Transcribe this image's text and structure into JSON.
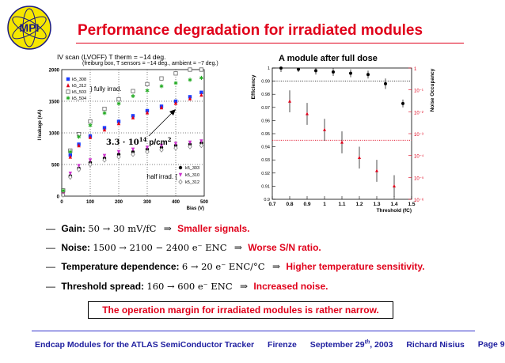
{
  "logo": {
    "text": "MPI"
  },
  "title": "Performance degradation for irradiated modules",
  "iv_plot": {
    "title": "IV scan (LVOFF) T therm = −14 deg.",
    "subtitle": "(freiburg box, T sensors = −14 deg., ambient = −7 deg.)",
    "ylabel": "I leakage (nA)",
    "xlabel": "Bias (V)",
    "fully_label": "} fully irrad.",
    "half_label": "half irrad. {",
    "fluence_label": "3.3 · 10",
    "fluence_exp": "14",
    "fluence_unit": "p/cm",
    "fluence_unit_exp": "2",
    "legend_fully": [
      "k5_308",
      "k5_312",
      "k5_503",
      "k5_504"
    ],
    "legend_half": [
      "k5_303",
      "k5_310",
      "k5_312"
    ],
    "colors": {
      "k5_308": "#1a3cff",
      "k5_312": "#e0001a",
      "k5_503": "#666666",
      "k5_504": "#22aa22",
      "k5_303": "#000000",
      "k5_310": "#cc33cc",
      "k5_312h": "#888888"
    }
  },
  "eff_plot": {
    "title": "A module after full dose",
    "ylabel_left": "Efficiency",
    "ylabel_right": "Noise Occupancy",
    "xlabel": "Threshold (fC)"
  },
  "chart_data": [
    {
      "type": "scatter",
      "title": "IV scan (LVOFF) T therm = −14 deg.",
      "xlabel": "Bias (V)",
      "ylabel": "I leakage (nA)",
      "xlim": [
        0,
        500
      ],
      "ylim": [
        0,
        2000
      ],
      "xticks": [
        "0",
        "100",
        "200",
        "300",
        "400",
        "500"
      ],
      "yticks": [
        "0",
        "500",
        "1000",
        "1500",
        "2000"
      ],
      "grid": true,
      "series": [
        {
          "name": "k5_308",
          "marker": "square",
          "x": [
            5,
            30,
            60,
            100,
            150,
            200,
            250,
            300,
            350,
            400,
            450,
            490
          ],
          "y": [
            80,
            650,
            820,
            950,
            1080,
            1180,
            1270,
            1350,
            1420,
            1500,
            1570,
            1640
          ]
        },
        {
          "name": "k5_312",
          "marker": "triangle",
          "x": [
            5,
            30,
            60,
            100,
            150,
            200,
            250,
            300,
            350,
            400,
            450,
            490
          ],
          "y": [
            70,
            620,
            800,
            930,
            1050,
            1150,
            1240,
            1320,
            1400,
            1470,
            1540,
            1600
          ]
        },
        {
          "name": "k5_503",
          "marker": "open-square",
          "x": [
            5,
            30,
            60,
            100,
            150,
            200,
            250,
            300,
            350,
            400,
            450,
            490
          ],
          "y": [
            90,
            720,
            980,
            1180,
            1380,
            1530,
            1660,
            1770,
            1860,
            1940,
            2020,
            2080
          ]
        },
        {
          "name": "k5_504",
          "marker": "star",
          "x": [
            5,
            30,
            60,
            100,
            150,
            200,
            250,
            300,
            350,
            400,
            450,
            490
          ],
          "y": [
            85,
            700,
            940,
            1120,
            1310,
            1460,
            1580,
            1670,
            1740,
            1790,
            1840,
            1870
          ]
        },
        {
          "name": "k5_303",
          "marker": "dot",
          "x": [
            5,
            30,
            60,
            100,
            150,
            200,
            250,
            300,
            350,
            400,
            450,
            490
          ],
          "y": [
            20,
            320,
            440,
            530,
            600,
            660,
            700,
            740,
            770,
            800,
            820,
            840
          ]
        },
        {
          "name": "k5_310",
          "marker": "triangle-down",
          "x": [
            5,
            30,
            60,
            100,
            150,
            200,
            250,
            300,
            350,
            400,
            450,
            490
          ],
          "y": [
            25,
            360,
            480,
            570,
            640,
            700,
            740,
            770,
            800,
            830,
            850,
            870
          ]
        },
        {
          "name": "k5_312",
          "marker": "open-diamond",
          "x": [
            5,
            30,
            60,
            100,
            150,
            200,
            250,
            300,
            350,
            400,
            450,
            490
          ],
          "y": [
            18,
            300,
            420,
            500,
            570,
            620,
            660,
            700,
            730,
            760,
            780,
            800
          ]
        }
      ]
    },
    {
      "type": "scatter",
      "title": "A module after full dose",
      "xlabel": "Threshold (fC)",
      "ylabel": "Efficiency",
      "y2label": "Noise Occupancy",
      "xlim": [
        0.7,
        1.5
      ],
      "ylim": [
        0.9,
        1.0
      ],
      "y2scale": "log",
      "y2lim": [
        1e-06,
        1
      ],
      "xticks": [
        "0.7",
        "0.8",
        "0.9",
        "1",
        "1.1",
        "1.2",
        "1.3",
        "1.4",
        "1.5"
      ],
      "yticks": [
        "0.9",
        "0.91",
        "0.92",
        "0.93",
        "0.94",
        "0.95",
        "0.96",
        "0.97",
        "0.98",
        "0.99",
        "1"
      ],
      "y2ticks": [
        "1",
        "10⁻¹",
        "10⁻²",
        "10⁻³",
        "10⁻⁴",
        "10⁻⁵",
        "10⁻⁶"
      ],
      "series": [
        {
          "axis": "left",
          "marker": "dot",
          "color": "#000000",
          "x": [
            0.75,
            0.85,
            0.95,
            1.05,
            1.15,
            1.25,
            1.35,
            1.45
          ],
          "y": [
            1.0,
            0.999,
            0.998,
            0.997,
            0.996,
            0.995,
            0.988,
            0.973
          ],
          "err": [
            0.003,
            0.002,
            0.003,
            0.003,
            0.003,
            0.003,
            0.004,
            0.003
          ]
        },
        {
          "axis": "right",
          "marker": "triangle",
          "color": "#e0001a",
          "x": [
            0.8,
            0.9,
            1.0,
            1.1,
            1.2,
            1.3,
            1.4
          ],
          "y": [
            0.03,
            0.008,
            0.0015,
            0.0004,
            8e-05,
            2e-05,
            4e-06
          ],
          "err_log": [
            0.5,
            0.5,
            0.5,
            0.5,
            0.5,
            0.5,
            0.5
          ]
        }
      ],
      "reference_lines": [
        {
          "axis": "left",
          "y": 0.99,
          "style": "dotted",
          "color": "#000000"
        },
        {
          "axis": "right",
          "y": 0.0005,
          "style": "dotted",
          "color": "#e0001a"
        }
      ]
    }
  ],
  "bullets": [
    {
      "dash": "—",
      "label": "Gain:",
      "math": "50 → 30 mV/fC",
      "arrow": "⇒",
      "result": "Smaller signals."
    },
    {
      "dash": "—",
      "label": "Noise:",
      "math": "1500 → 2100 − 2400 e⁻ ENC",
      "arrow": "⇒",
      "result": "Worse S/N ratio."
    },
    {
      "dash": "—",
      "label": "Temperature dependence:",
      "math": "6 → 20 e⁻ ENC/°C",
      "arrow": "⇒",
      "result": "Higher temperature sensitivity."
    },
    {
      "dash": "—",
      "label": "Threshold spread:",
      "math": "160 → 600 e⁻ ENC",
      "arrow": "⇒",
      "result": "Increased noise."
    }
  ],
  "conclusion": "The operation margin for irradiated modules is rather narrow.",
  "footer": {
    "title": "Endcap Modules for the ATLAS SemiConductor Tracker",
    "place": "Firenze",
    "date_pre": "September 29",
    "date_sup": "th",
    "date_post": ", 2003",
    "author": "Richard Nisius",
    "page": "Page 9"
  }
}
